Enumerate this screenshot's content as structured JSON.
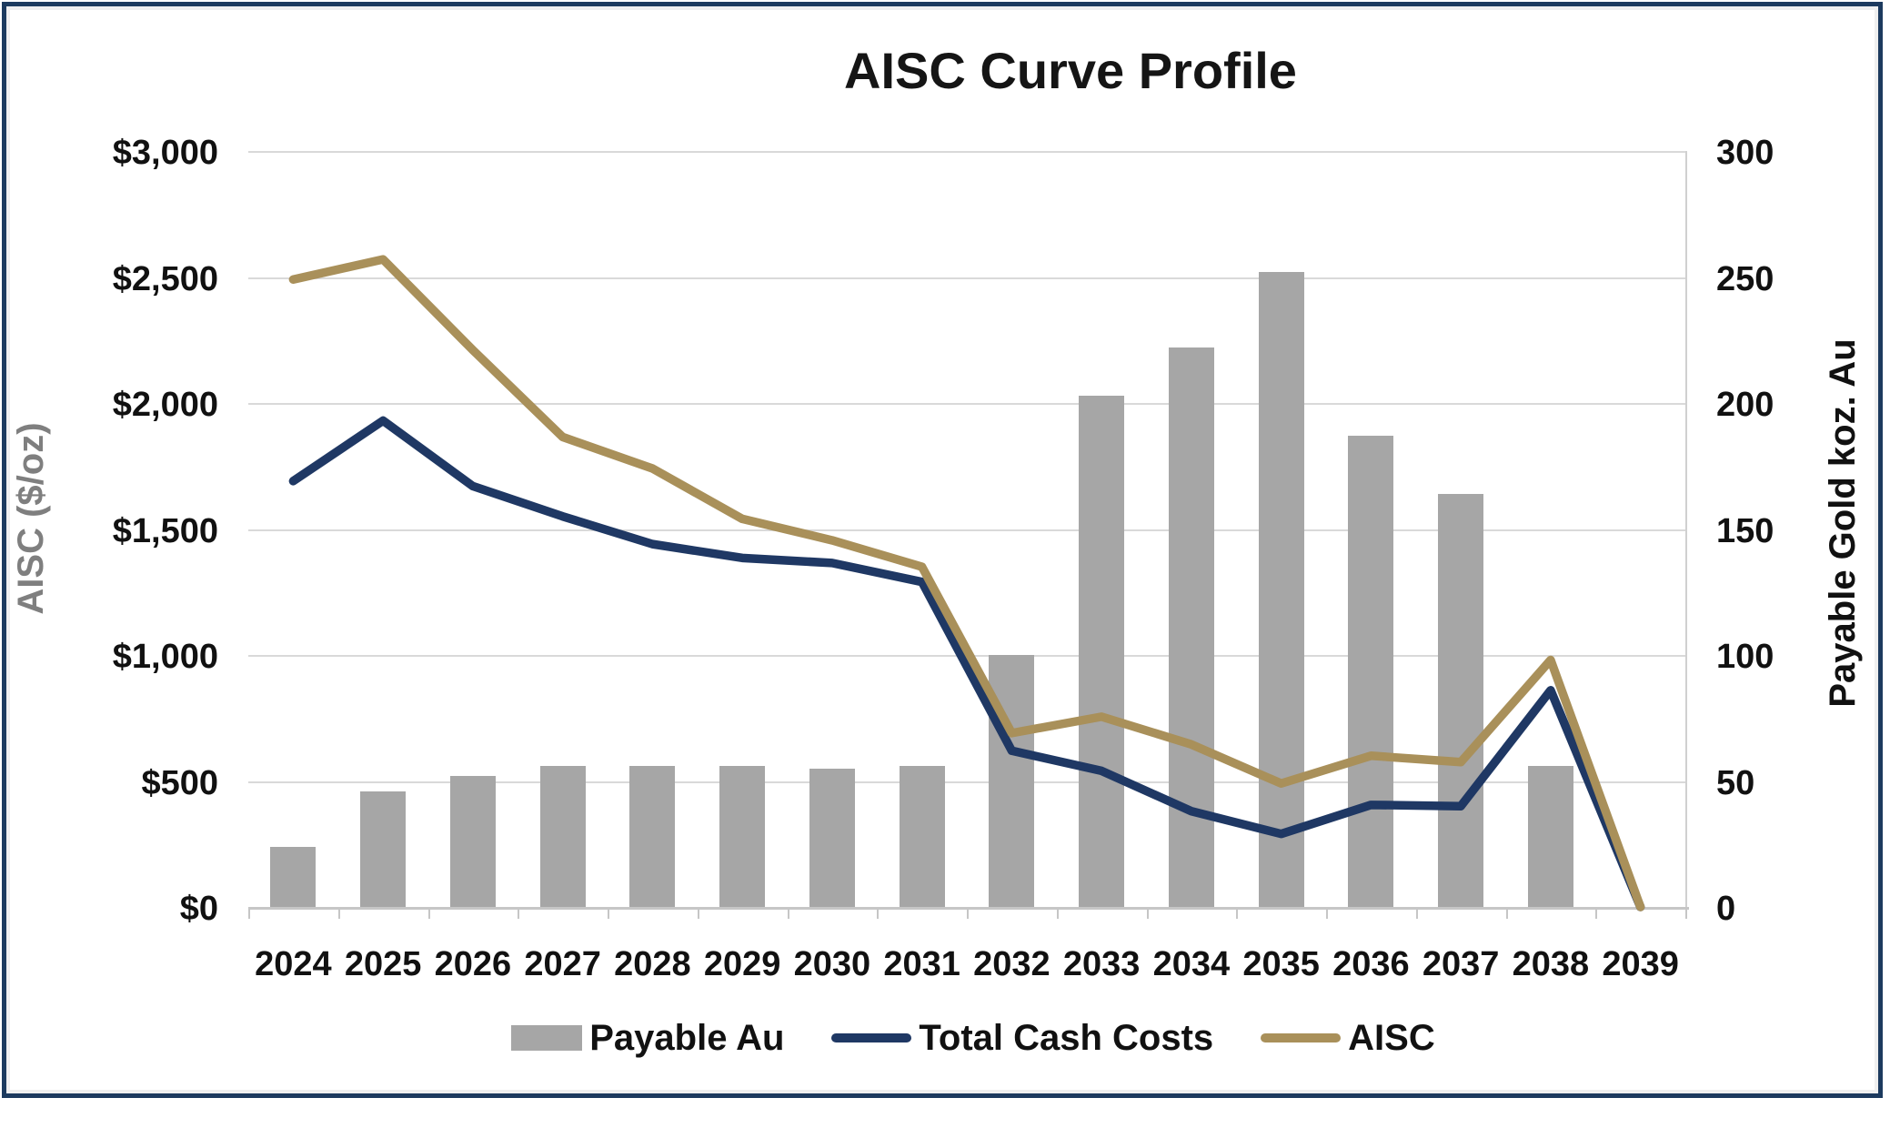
{
  "chart_data": {
    "type": "bar",
    "combo": "bars + 2 lines",
    "title": "AISC Curve Profile",
    "categories": [
      "2024",
      "2025",
      "2026",
      "2027",
      "2028",
      "2029",
      "2030",
      "2031",
      "2032",
      "2033",
      "2034",
      "2035",
      "2036",
      "2037",
      "2038",
      "2039"
    ],
    "series": [
      {
        "name": "Payable Au",
        "type": "bar",
        "axis": "right",
        "color": "#a6a6a6",
        "values": [
          24,
          46,
          52,
          56,
          56,
          56,
          55,
          56,
          100,
          203,
          222,
          252,
          187,
          164,
          56,
          0
        ]
      },
      {
        "name": "Total Cash Costs",
        "type": "line",
        "axis": "left",
        "color": "#1f3864",
        "values": [
          1690,
          1930,
          1670,
          1550,
          1440,
          1385,
          1365,
          1290,
          620,
          540,
          380,
          290,
          405,
          400,
          860,
          0
        ]
      },
      {
        "name": "AISC",
        "type": "line",
        "axis": "left",
        "color": "#a9905a",
        "values": [
          2490,
          2570,
          2210,
          1865,
          1740,
          1540,
          1455,
          1350,
          690,
          755,
          645,
          490,
          600,
          575,
          980,
          0
        ]
      }
    ],
    "left_axis": {
      "label": "AISC ($/oz)",
      "tick_labels": [
        "$3,000",
        "$2,500",
        "$2,000",
        "$1,500",
        "$1,000",
        "$500",
        "$0"
      ],
      "tick_values": [
        3000,
        2500,
        2000,
        1500,
        1000,
        500,
        0
      ],
      "min": 0,
      "max": 3000,
      "grid": true
    },
    "right_axis": {
      "label": "Payable Gold koz. Au",
      "tick_labels": [
        "300",
        "250",
        "200",
        "150",
        "100",
        "50",
        "0"
      ],
      "tick_values": [
        300,
        250,
        200,
        150,
        100,
        50,
        0
      ],
      "min": 0,
      "max": 300
    },
    "legend": {
      "position": "bottom",
      "items": [
        {
          "label": "Payable Au",
          "swatch": "bar",
          "color": "#a6a6a6"
        },
        {
          "label": "Total Cash Costs",
          "swatch": "line",
          "color": "#1f3864"
        },
        {
          "label": "AISC",
          "swatch": "line",
          "color": "#a9905a"
        }
      ]
    },
    "frame_border_color": "#1c3a5e",
    "gridline_color": "#d9d9d9",
    "background": "#ffffff"
  }
}
